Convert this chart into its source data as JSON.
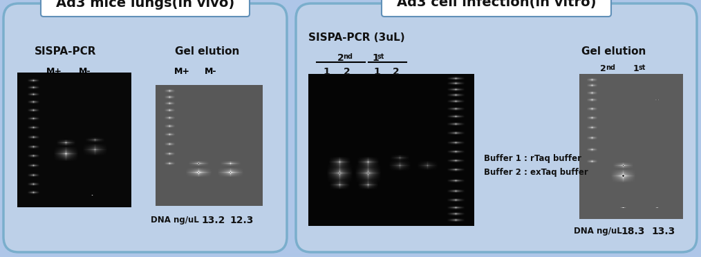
{
  "bg_color": "#aec6e8",
  "panel1": {
    "title": "Ad3 mice lungs(in vivo)",
    "label1": "SISPA-PCR",
    "label2": "Gel elution",
    "lane_labels1": [
      "M+",
      "M-"
    ],
    "lane_labels2": [
      "M+",
      "M-"
    ],
    "dna_label": "DNA ng/uL",
    "dna_values1": "13.2",
    "dna_values2": "12.3"
  },
  "panel2": {
    "title": "Ad3 cell infection(in vitro)",
    "label1": "SISPA-PCR (3uL)",
    "label2": "Gel elution",
    "buffer1": "Buffer 1 : rTaq buffer",
    "buffer2": "Buffer 2 : exTaq buffer",
    "dna_label": "DNA ng/uL",
    "dna_values1": "18.3",
    "dna_values2": "13.3"
  }
}
